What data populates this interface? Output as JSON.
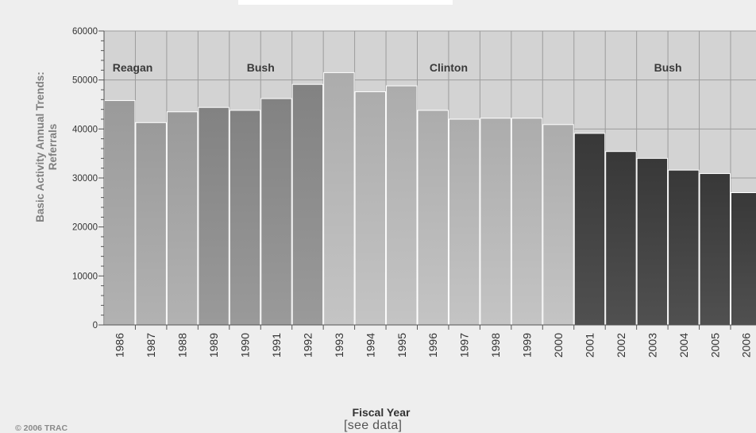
{
  "chart_data": {
    "type": "bar",
    "title": "",
    "ylabel_line1": "Basic Activity Annual Trends:",
    "ylabel_line2": "Referrals",
    "xlabel": "Fiscal Year",
    "ylim": [
      0,
      60000
    ],
    "yticks": [
      0,
      10000,
      20000,
      30000,
      40000,
      50000,
      60000
    ],
    "grid": true,
    "categories": [
      "1986",
      "1987",
      "1988",
      "1989",
      "1990",
      "1991",
      "1992",
      "1993",
      "1994",
      "1995",
      "1996",
      "1997",
      "1998",
      "1999",
      "2000",
      "2001",
      "2002",
      "2003",
      "2004",
      "2005",
      "2006"
    ],
    "values": [
      45800,
      41300,
      43500,
      44400,
      43800,
      46200,
      49100,
      51500,
      47600,
      48800,
      43800,
      42000,
      42200,
      42200,
      40900,
      39100,
      35400,
      34000,
      31600,
      30900,
      27000
    ],
    "administrations": [
      {
        "name": "Reagan",
        "start": "1986",
        "end": "1988",
        "color": "#a6a6a6"
      },
      {
        "name": "Bush",
        "start": "1989",
        "end": "1992",
        "color": "#8e8e8e"
      },
      {
        "name": "Clinton",
        "start": "1993",
        "end": "2000",
        "color": "#b8b8b8"
      },
      {
        "name": "Bush",
        "start": "2001",
        "end": "2006",
        "color": "#444444"
      }
    ]
  },
  "footer": {
    "copyright": "© 2006 TRAC",
    "see_data": "[see data]"
  }
}
